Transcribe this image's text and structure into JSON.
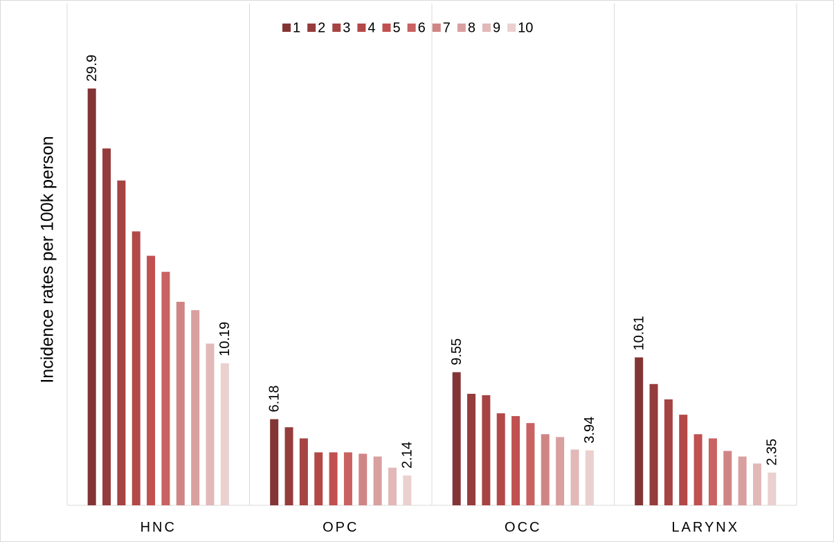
{
  "chart_data": {
    "type": "bar",
    "y_label": "Incidence rates per 100k person",
    "categories": [
      "HNC",
      "OPC",
      "OCC",
      "LARYNX"
    ],
    "ylim": [
      0,
      36
    ],
    "legend": "top",
    "series": [
      {
        "name": "1",
        "color": "#833535",
        "show_labels": true,
        "values": [
          29.9,
          6.18,
          9.55,
          10.61
        ]
      },
      {
        "name": "2",
        "color": "#953c3c",
        "values": [
          25.6,
          5.6,
          8.0,
          8.7
        ]
      },
      {
        "name": "3",
        "color": "#a64343",
        "values": [
          23.3,
          4.8,
          7.9,
          7.6
        ]
      },
      {
        "name": "4",
        "color": "#b34848",
        "values": [
          19.65,
          3.8,
          6.6,
          6.5
        ]
      },
      {
        "name": "5",
        "color": "#c15050",
        "values": [
          17.9,
          3.8,
          6.4,
          5.1
        ]
      },
      {
        "name": "6",
        "color": "#c96262",
        "values": [
          16.75,
          3.8,
          5.9,
          4.8
        ]
      },
      {
        "name": "7",
        "color": "#d08585",
        "values": [
          14.6,
          3.7,
          5.1,
          3.9
        ]
      },
      {
        "name": "8",
        "color": "#d9a0a0",
        "values": [
          14.0,
          3.5,
          4.9,
          3.5
        ]
      },
      {
        "name": "9",
        "color": "#e2b8b8",
        "values": [
          11.6,
          2.7,
          4.0,
          3.0
        ]
      },
      {
        "name": "10",
        "color": "#ebd0d0",
        "show_labels": true,
        "values": [
          10.19,
          2.14,
          3.94,
          2.35
        ]
      }
    ]
  }
}
